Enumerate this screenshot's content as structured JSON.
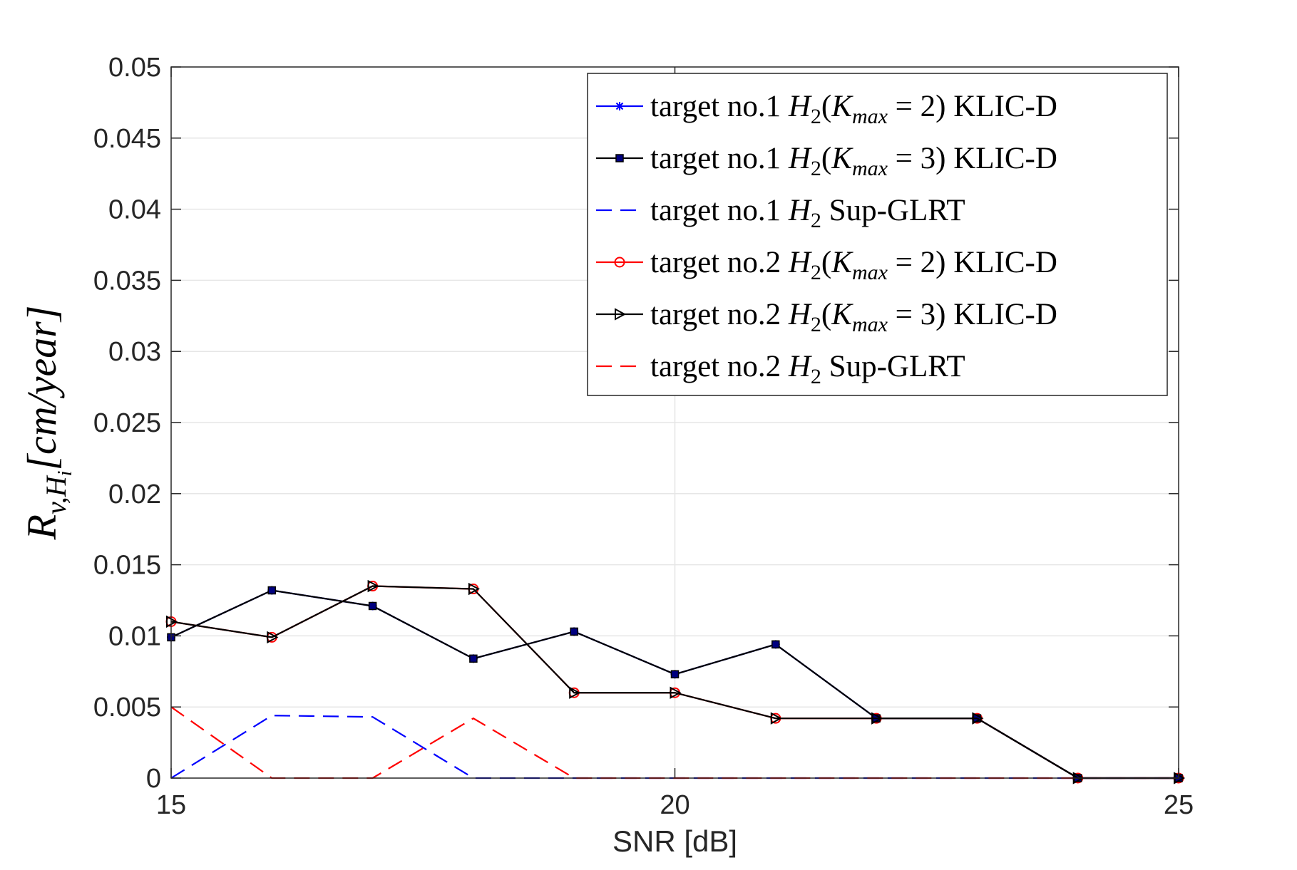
{
  "chart_data": {
    "type": "line",
    "xlabel": "SNR [dB]",
    "ylabel": {
      "base": "R",
      "sub1": "v,",
      "sub_h": "H",
      "sub_i": "i",
      "unit": "[cm/year]"
    },
    "xlim": [
      15,
      25
    ],
    "ylim": [
      0,
      0.05
    ],
    "xticks": [
      "15",
      "20",
      "25"
    ],
    "xtick_values": [
      15,
      20,
      25
    ],
    "yticks": [
      "0",
      "0.005",
      "0.01",
      "0.015",
      "0.02",
      "0.025",
      "0.03",
      "0.035",
      "0.04",
      "0.045",
      "0.05"
    ],
    "ytick_values": [
      0,
      0.005,
      0.01,
      0.015,
      0.02,
      0.025,
      0.03,
      0.035,
      0.04,
      0.045,
      0.05
    ],
    "grid": true,
    "legend_position": "top-right",
    "x": [
      15,
      16,
      17,
      18,
      19,
      20,
      21,
      22,
      23,
      24,
      25
    ],
    "series": [
      {
        "name": "target no.1 H2(Kmax = 2) KLIC-D",
        "legend": {
          "pre": "target no.1 ",
          "h": "H",
          "hsub": "2",
          "mid": "(",
          "k": "K",
          "ksub": "max",
          "post": " = 2) KLIC-D"
        },
        "color": "#0000ff",
        "dash": "solid",
        "marker": "star",
        "values": [
          0.0099,
          0.0132,
          0.0121,
          0.0084,
          0.0103,
          0.0073,
          0.0094,
          0.0042,
          0.0042,
          0.0,
          0.0
        ]
      },
      {
        "name": "target no.1 H2(Kmax = 3) KLIC-D",
        "legend": {
          "pre": "target no.1 ",
          "h": "H",
          "hsub": "2",
          "mid": "(",
          "k": "K",
          "ksub": "max",
          "post": " = 3) KLIC-D"
        },
        "color": "#000000",
        "dash": "solid",
        "marker": "square",
        "values": [
          0.0099,
          0.0132,
          0.0121,
          0.0084,
          0.0103,
          0.0073,
          0.0094,
          0.0042,
          0.0042,
          0.0,
          0.0
        ]
      },
      {
        "name": "target no.1 H2 Sup-GLRT",
        "legend": {
          "pre": "target no.1 ",
          "h": "H",
          "hsub": "2",
          "mid": "",
          "k": "",
          "ksub": "",
          "post": " Sup-GLRT"
        },
        "color": "#0000ff",
        "dash": "dashed",
        "marker": "none",
        "values": [
          0.0,
          0.0044,
          0.0043,
          0.0,
          0.0,
          0.0,
          0.0,
          0.0,
          0.0,
          0.0,
          0.0
        ]
      },
      {
        "name": "target no.2 H2(Kmax = 2) KLIC-D",
        "legend": {
          "pre": "target no.2 ",
          "h": "H",
          "hsub": "2",
          "mid": "(",
          "k": "K",
          "ksub": "max",
          "post": " = 2) KLIC-D"
        },
        "color": "#ff0000",
        "dash": "solid",
        "marker": "circle",
        "values": [
          0.011,
          0.0099,
          0.0135,
          0.0133,
          0.006,
          0.006,
          0.0042,
          0.0042,
          0.0042,
          0.0,
          0.0
        ]
      },
      {
        "name": "target no.2 H2(Kmax = 3) KLIC-D",
        "legend": {
          "pre": "target no.2 ",
          "h": "H",
          "hsub": "2",
          "mid": "(",
          "k": "K",
          "ksub": "max",
          "post": " = 3) KLIC-D"
        },
        "color": "#000000",
        "dash": "solid",
        "marker": "triangle-right",
        "values": [
          0.011,
          0.0099,
          0.0135,
          0.0133,
          0.006,
          0.006,
          0.0042,
          0.0042,
          0.0042,
          0.0,
          0.0
        ]
      },
      {
        "name": "target no.2 H2 Sup-GLRT",
        "legend": {
          "pre": "target no.2 ",
          "h": "H",
          "hsub": "2",
          "mid": "",
          "k": "",
          "ksub": "",
          "post": " Sup-GLRT"
        },
        "color": "#ff0000",
        "dash": "dashed",
        "marker": "none",
        "values": [
          0.005,
          0.0,
          0.0,
          0.0042,
          0.0,
          0.0,
          0.0,
          0.0,
          0.0,
          0.0,
          0.0
        ]
      }
    ]
  }
}
